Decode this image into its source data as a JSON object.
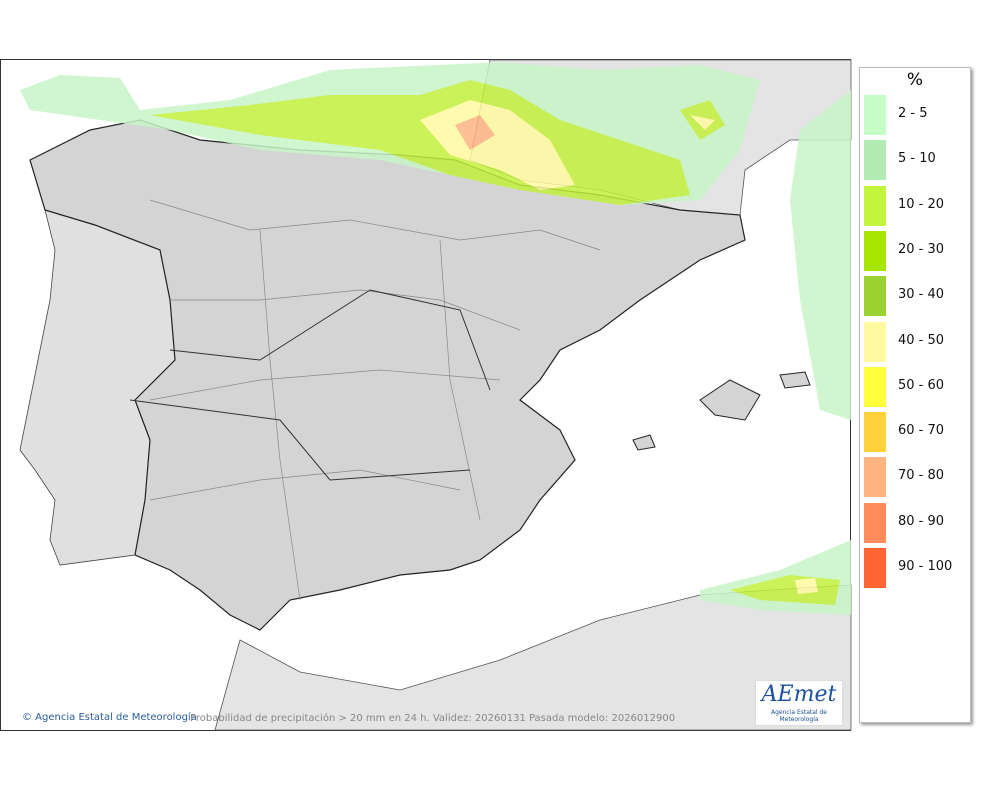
{
  "legend": {
    "title": "%",
    "items": [
      {
        "label": "2 - 5",
        "color": "#c6fcc6"
      },
      {
        "label": "5 - 10",
        "color": "#b2ebb2"
      },
      {
        "label": "10 - 20",
        "color": "#c3f53c"
      },
      {
        "label": "20 - 30",
        "color": "#a6e600"
      },
      {
        "label": "30 - 40",
        "color": "#9bd232"
      },
      {
        "label": "40 - 50",
        "color": "#fffaa0"
      },
      {
        "label": "50 - 60",
        "color": "#ffff3c"
      },
      {
        "label": "60 - 70",
        "color": "#ffd23c"
      },
      {
        "label": "70 - 80",
        "color": "#ffb482"
      },
      {
        "label": "80 - 90",
        "color": "#ff8c5a"
      },
      {
        "label": "90 - 100",
        "color": "#ff6432"
      }
    ]
  },
  "footer": {
    "credit": "© Agencia Estatal de Meteorología",
    "caption": "Probabilidad de precipitación > 20 mm en 24 h. Validez: 20260131 Pasada modelo: 2026012900"
  },
  "logo": {
    "text": "AEmet",
    "subtitle": "Agencia Estatal de Meteorología"
  }
}
